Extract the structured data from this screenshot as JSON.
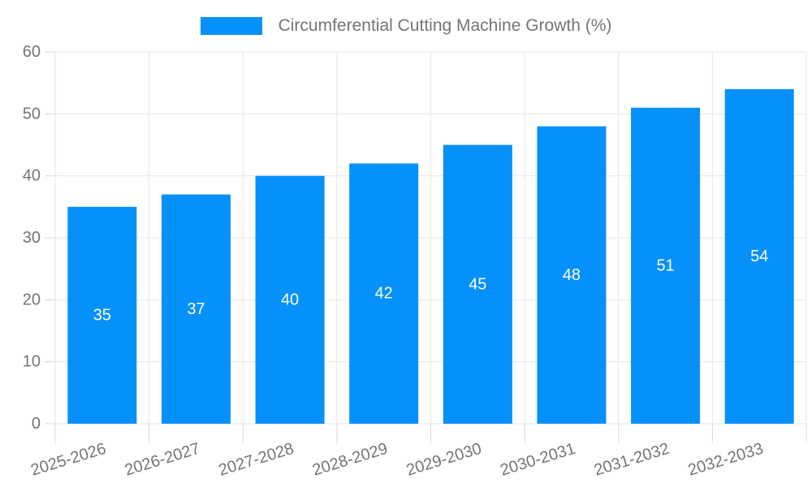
{
  "legend": {
    "label": "Circumferential Cutting Machine Growth (%)",
    "swatch_color": "#0690fa"
  },
  "chart_data": {
    "type": "bar",
    "title": "Circumferential Cutting Machine Growth (%)",
    "categories": [
      "2025-2026",
      "2026-2027",
      "2027-2028",
      "2028-2029",
      "2029-2030",
      "2030-2031",
      "2031-2032",
      "2032-2033"
    ],
    "values": [
      35,
      37,
      40,
      42,
      45,
      48,
      51,
      54
    ],
    "value_labels": [
      "35",
      "37",
      "40",
      "42",
      "45",
      "48",
      "51",
      "54"
    ],
    "xlabel": "",
    "ylabel": "",
    "ylim": [
      0,
      60
    ],
    "ytick_step": 10,
    "ytick_labels": [
      "0",
      "10",
      "20",
      "30",
      "40",
      "50",
      "60"
    ],
    "grid": true,
    "legend_position": "top-center",
    "bar_color": "#0690fa",
    "value_label_color": "#ffffff",
    "axis_text_color": "#757575",
    "grid_color": "#e6e6e6",
    "axis_line_color": "#d9d9d9",
    "x_label_rotation_deg": -17
  }
}
